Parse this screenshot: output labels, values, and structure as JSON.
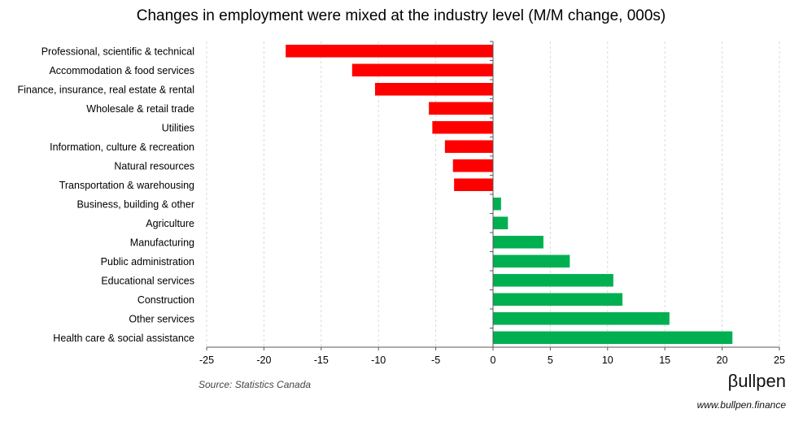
{
  "chart_data": {
    "type": "bar",
    "orientation": "horizontal",
    "title": "Changes in employment were mixed at the industry level (M/M change, 000s)",
    "categories": [
      "Professional, scientific & technical",
      "Accommodation & food services",
      "Finance, insurance, real estate & rental",
      "Wholesale & retail trade",
      "Utilities",
      "Information, culture & recreation",
      "Natural resources",
      "Transportation & warehousing",
      "Business, building & other",
      "Agriculture",
      "Manufacturing",
      "Public administration",
      "Educational services",
      "Construction",
      "Other services",
      "Health care & social assistance"
    ],
    "values": [
      -18.1,
      -12.3,
      -10.3,
      -5.6,
      -5.3,
      -4.2,
      -3.5,
      -3.4,
      0.7,
      1.3,
      4.4,
      6.7,
      10.5,
      11.3,
      15.4,
      20.9
    ],
    "xlim": [
      -25,
      25
    ],
    "xticks": [
      -25,
      -20,
      -15,
      -10,
      -5,
      0,
      5,
      10,
      15,
      20,
      25
    ],
    "grid": "vertical",
    "xlabel": "",
    "ylabel": ""
  },
  "colors": {
    "negative": "#ff0000",
    "positive": "#00b050",
    "grid": "#d9d9d9",
    "axis": "#595959"
  },
  "footer": {
    "source": "Source: Statistics Canada",
    "logo": "βullpen",
    "url": "www.bullpen.finance"
  }
}
